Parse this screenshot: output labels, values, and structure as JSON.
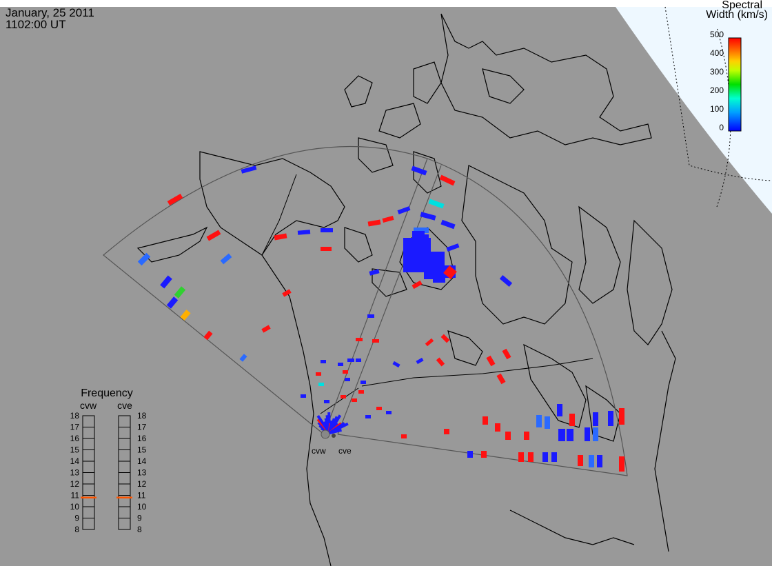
{
  "header": {
    "date": "January, 25 2011",
    "time": "1102:00 UT"
  },
  "colorbar": {
    "title_line1": "Spectral",
    "title_line2": "Width (km/s)",
    "ticks": [
      "500",
      "400",
      "300",
      "200",
      "100",
      "0"
    ]
  },
  "frequency_panel": {
    "title": "Frequency",
    "radars": [
      {
        "label": "cvw",
        "marker_mhz": 10.8,
        "marker_color": "#ff5500"
      },
      {
        "label": "cve",
        "marker_mhz": 10.8,
        "marker_color": "#ff5500"
      }
    ],
    "scale": [
      "18",
      "17",
      "16",
      "15",
      "14",
      "13",
      "12",
      "11",
      "10",
      "9",
      "8"
    ]
  },
  "radar_sites": [
    {
      "label": "cvw"
    },
    {
      "label": "cve"
    }
  ],
  "colors": {
    "land": "#999999",
    "polar_cap": "#eef8ff",
    "low": "#1a1aff",
    "mid": "#00e0e0",
    "high": "#ff1111"
  }
}
